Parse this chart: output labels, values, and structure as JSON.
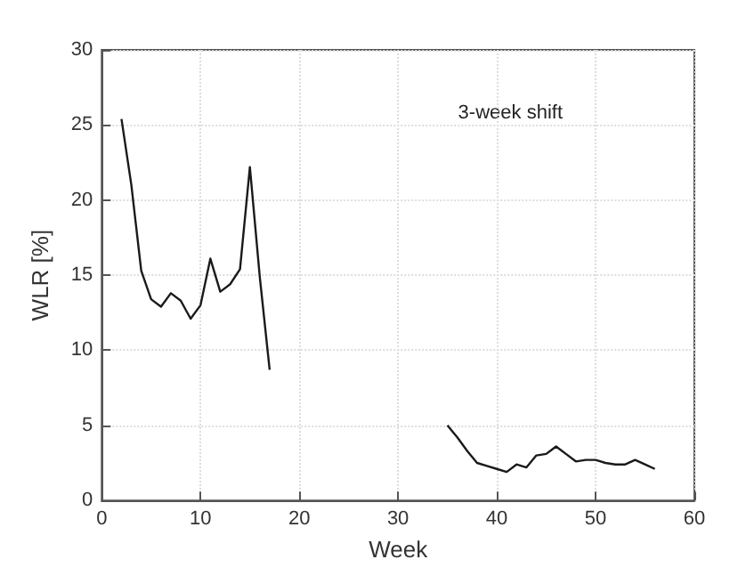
{
  "chart_data": {
    "type": "line",
    "xlabel": "Week",
    "ylabel": "WLR [%]",
    "annotations": [
      "3-week shift"
    ],
    "series": [
      {
        "color": "#1a1a1a",
        "x": [
          2,
          3,
          4,
          5,
          6,
          7,
          8,
          9,
          10,
          11,
          12,
          13,
          14,
          15,
          16,
          17
        ],
        "values": [
          25.4,
          21,
          15.3,
          13.4,
          12.9,
          13.8,
          13.3,
          12.1,
          13,
          16.1,
          13.9,
          14.4,
          15.4,
          22.2,
          14.9,
          8.7
        ]
      },
      {
        "color": "#1a1a1a",
        "x": [
          35,
          36,
          37,
          38,
          39,
          40,
          41,
          42,
          43,
          44,
          45,
          46,
          47,
          48,
          49,
          50,
          51,
          52,
          53,
          54,
          55,
          56
        ],
        "values": [
          5,
          4.2,
          3.3,
          2.5,
          2.3,
          2.1,
          1.9,
          2.4,
          2.2,
          3,
          3.1,
          3.6,
          3.1,
          2.6,
          2.7,
          2.7,
          2.5,
          2.4,
          2.4,
          2.7,
          2.4,
          2.1
        ]
      }
    ],
    "xlim": [
      0,
      60
    ],
    "xticks": [
      0,
      10,
      20,
      30,
      40,
      50,
      60
    ],
    "ylim": [
      0,
      30
    ],
    "yticks": [
      0,
      5,
      10,
      15,
      20,
      25,
      30
    ],
    "grid": true,
    "marker": "none",
    "line_style": "solid"
  }
}
